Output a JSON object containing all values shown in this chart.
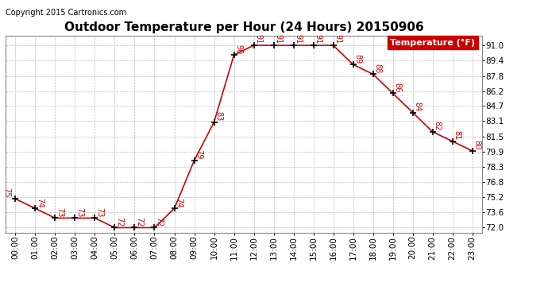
{
  "title": "Outdoor Temperature per Hour (24 Hours) 20150906",
  "copyright_text": "Copyright 2015 Cartronics.com",
  "legend_text": "Temperature (°F)",
  "hours": [
    0,
    1,
    2,
    3,
    4,
    5,
    6,
    7,
    8,
    9,
    10,
    11,
    12,
    13,
    14,
    15,
    16,
    17,
    18,
    19,
    20,
    21,
    22,
    23
  ],
  "temperatures": [
    75,
    74,
    73,
    73,
    73,
    72,
    72,
    72,
    74,
    79,
    83,
    90,
    91,
    91,
    91,
    91,
    91,
    89,
    88,
    86,
    84,
    82,
    81,
    80
  ],
  "hour_labels": [
    "00:00",
    "01:00",
    "02:00",
    "03:00",
    "04:00",
    "05:00",
    "06:00",
    "07:00",
    "08:00",
    "09:00",
    "10:00",
    "11:00",
    "12:00",
    "13:00",
    "14:00",
    "15:00",
    "16:00",
    "17:00",
    "18:00",
    "19:00",
    "20:00",
    "21:00",
    "22:00",
    "23:00"
  ],
  "yticks": [
    72.0,
    73.6,
    75.2,
    76.8,
    78.3,
    79.9,
    81.5,
    83.1,
    84.7,
    86.2,
    87.8,
    89.4,
    91.0
  ],
  "ylim": [
    71.5,
    92.0
  ],
  "xlim": [
    -0.5,
    23.5
  ],
  "line_color": "#cc0000",
  "marker_color": "#000000",
  "bg_color": "#ffffff",
  "grid_color": "#bbbbbb",
  "legend_bg": "#cc0000",
  "legend_fg": "#ffffff",
  "title_fontsize": 11,
  "label_fontsize": 7.5,
  "annotation_fontsize": 7,
  "copyright_fontsize": 7
}
